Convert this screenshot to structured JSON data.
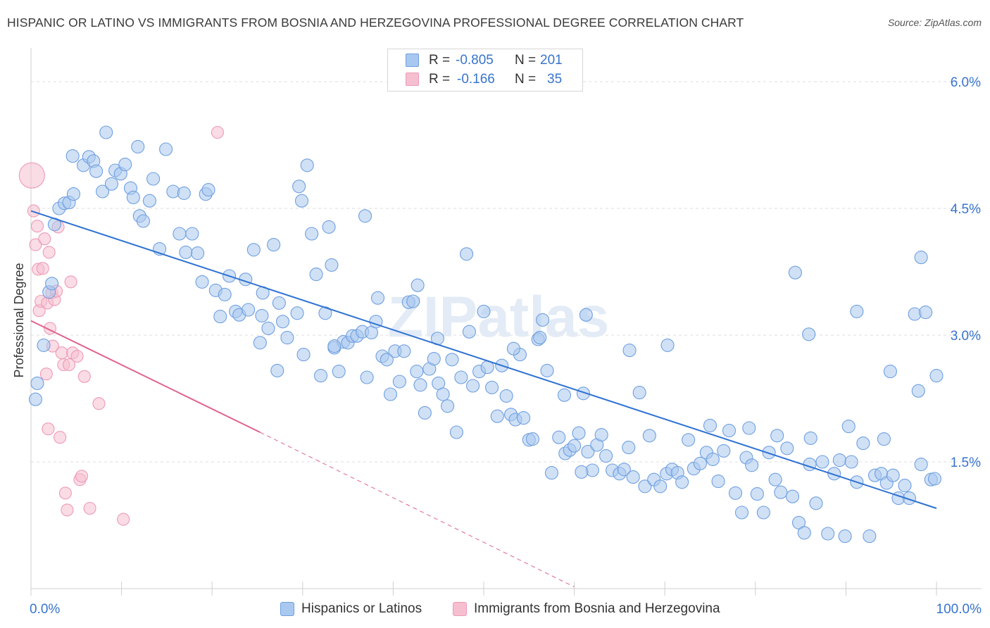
{
  "title": "HISPANIC OR LATINO VS IMMIGRANTS FROM BOSNIA AND HERZEGOVINA PROFESSIONAL DEGREE CORRELATION CHART",
  "source": "Source: ZipAtlas.com",
  "watermark": "ZIPatlas",
  "colors": {
    "blue_fill": "#a9c8ef",
    "blue_stroke": "#6f9fe0",
    "blue_line": "#2e72d2",
    "pink_fill": "#f6bfd0",
    "pink_stroke": "#ee9ab5",
    "pink_line": "#e0628d",
    "axis_text": "#3874cc",
    "grid": "#dcdcdc"
  },
  "legend_top": {
    "r_label": "R =",
    "n_label": "N =",
    "rows": [
      {
        "r": "-0.805",
        "n": "201"
      },
      {
        "r": "-0.166",
        "n": "35"
      }
    ]
  },
  "chart_data": {
    "type": "scatter",
    "title": "HISPANIC OR LATINO VS IMMIGRANTS FROM BOSNIA AND HERZEGOVINA PROFESSIONAL DEGREE CORRELATION CHART",
    "ylabel": "Professional Degree",
    "xlabel": "",
    "xlim": [
      0,
      100
    ],
    "ylim": [
      0,
      6.3
    ],
    "x_tick_labels": [
      "0.0%",
      "100.0%"
    ],
    "y_ticks": [
      1.5,
      3.0,
      4.5,
      6.0
    ],
    "y_tick_labels": [
      "1.5%",
      "3.0%",
      "4.5%",
      "6.0%"
    ],
    "grid": true,
    "legend_position": "bottom",
    "series": [
      {
        "name": "Hispanics or Latinos",
        "r": -0.805,
        "n": 201,
        "trend": {
          "x": [
            0,
            100
          ],
          "y": [
            4.47,
            0.95
          ]
        },
        "points": [
          [
            0.5,
            2.24
          ],
          [
            0.7,
            2.43
          ],
          [
            1.4,
            2.88
          ],
          [
            2.0,
            3.51
          ],
          [
            2.3,
            3.61
          ],
          [
            2.6,
            4.31
          ],
          [
            3.1,
            4.5
          ],
          [
            3.7,
            4.56
          ],
          [
            4.2,
            4.57
          ],
          [
            4.7,
            4.67
          ],
          [
            4.6,
            5.12
          ],
          [
            5.8,
            5.01
          ],
          [
            6.4,
            5.11
          ],
          [
            6.9,
            5.06
          ],
          [
            7.2,
            4.94
          ],
          [
            7.9,
            4.7
          ],
          [
            8.3,
            5.4
          ],
          [
            8.9,
            4.79
          ],
          [
            9.3,
            4.95
          ],
          [
            9.9,
            4.91
          ],
          [
            10.4,
            5.02
          ],
          [
            11.0,
            4.74
          ],
          [
            11.3,
            4.63
          ],
          [
            11.8,
            5.23
          ],
          [
            12.0,
            4.41
          ],
          [
            12.4,
            4.35
          ],
          [
            13.1,
            4.59
          ],
          [
            13.5,
            4.85
          ],
          [
            14.2,
            4.02
          ],
          [
            14.9,
            5.2
          ],
          [
            15.7,
            4.7
          ],
          [
            16.4,
            4.2
          ],
          [
            16.9,
            4.68
          ],
          [
            17.1,
            3.98
          ],
          [
            17.8,
            4.2
          ],
          [
            18.4,
            3.97
          ],
          [
            18.9,
            3.63
          ],
          [
            19.3,
            4.67
          ],
          [
            19.6,
            4.72
          ],
          [
            20.4,
            3.53
          ],
          [
            20.9,
            3.22
          ],
          [
            21.4,
            3.48
          ],
          [
            21.9,
            3.7
          ],
          [
            22.6,
            3.28
          ],
          [
            23.0,
            3.24
          ],
          [
            23.7,
            3.66
          ],
          [
            24.0,
            3.3
          ],
          [
            24.6,
            4.01
          ],
          [
            25.3,
            2.91
          ],
          [
            25.6,
            3.5
          ],
          [
            26.2,
            3.08
          ],
          [
            26.8,
            4.07
          ],
          [
            27.4,
            3.38
          ],
          [
            27.8,
            3.16
          ],
          [
            28.3,
            2.97
          ],
          [
            29.4,
            3.26
          ],
          [
            29.6,
            4.76
          ],
          [
            29.9,
            4.59
          ],
          [
            30.5,
            5.01
          ],
          [
            31.0,
            4.2
          ],
          [
            31.5,
            3.72
          ],
          [
            32.0,
            2.52
          ],
          [
            32.5,
            3.26
          ],
          [
            32.9,
            4.28
          ],
          [
            33.5,
            2.85
          ],
          [
            34.0,
            2.57
          ],
          [
            34.5,
            2.92
          ],
          [
            35.0,
            2.91
          ],
          [
            35.5,
            2.99
          ],
          [
            36.0,
            2.99
          ],
          [
            36.6,
            3.04
          ],
          [
            37.1,
            2.5
          ],
          [
            37.6,
            3.03
          ],
          [
            38.3,
            3.44
          ],
          [
            38.8,
            2.75
          ],
          [
            39.3,
            2.71
          ],
          [
            39.7,
            2.3
          ],
          [
            40.2,
            2.81
          ],
          [
            40.7,
            2.45
          ],
          [
            41.2,
            2.81
          ],
          [
            41.7,
            3.39
          ],
          [
            42.2,
            3.4
          ],
          [
            42.6,
            2.57
          ],
          [
            43.0,
            2.41
          ],
          [
            43.5,
            2.08
          ],
          [
            44.0,
            2.6
          ],
          [
            44.5,
            2.72
          ],
          [
            45.0,
            2.43
          ],
          [
            45.5,
            2.3
          ],
          [
            46.0,
            2.16
          ],
          [
            46.5,
            2.71
          ],
          [
            47.0,
            1.85
          ],
          [
            47.5,
            2.5
          ],
          [
            48.1,
            3.96
          ],
          [
            48.8,
            2.4
          ],
          [
            49.5,
            2.57
          ],
          [
            50.0,
            3.28
          ],
          [
            50.4,
            2.62
          ],
          [
            50.9,
            2.38
          ],
          [
            51.5,
            2.04
          ],
          [
            52.0,
            2.64
          ],
          [
            52.5,
            2.28
          ],
          [
            53.0,
            2.06
          ],
          [
            53.5,
            2.0
          ],
          [
            54.0,
            2.77
          ],
          [
            54.4,
            2.02
          ],
          [
            55.0,
            1.76
          ],
          [
            55.4,
            1.77
          ],
          [
            56.0,
            2.95
          ],
          [
            56.5,
            3.18
          ],
          [
            57.0,
            2.58
          ],
          [
            57.5,
            1.37
          ],
          [
            58.3,
            1.79
          ],
          [
            59.0,
            1.6
          ],
          [
            59.5,
            1.64
          ],
          [
            60.0,
            1.69
          ],
          [
            60.5,
            1.84
          ],
          [
            61.0,
            2.31
          ],
          [
            61.5,
            1.62
          ],
          [
            62.0,
            1.4
          ],
          [
            62.5,
            1.7
          ],
          [
            63.0,
            1.82
          ],
          [
            63.5,
            1.57
          ],
          [
            64.2,
            1.4
          ],
          [
            65.0,
            1.36
          ],
          [
            65.5,
            1.41
          ],
          [
            66.0,
            1.67
          ],
          [
            66.5,
            1.32
          ],
          [
            67.2,
            2.32
          ],
          [
            67.8,
            1.21
          ],
          [
            68.3,
            1.81
          ],
          [
            68.8,
            1.29
          ],
          [
            69.5,
            1.21
          ],
          [
            70.2,
            1.36
          ],
          [
            70.8,
            1.41
          ],
          [
            71.4,
            1.37
          ],
          [
            71.9,
            1.26
          ],
          [
            72.6,
            1.76
          ],
          [
            73.2,
            1.42
          ],
          [
            73.9,
            1.48
          ],
          [
            74.6,
            1.61
          ],
          [
            75.3,
            1.53
          ],
          [
            75.9,
            1.27
          ],
          [
            76.5,
            1.63
          ],
          [
            77.1,
            1.87
          ],
          [
            77.8,
            1.13
          ],
          [
            78.5,
            0.9
          ],
          [
            79.0,
            1.55
          ],
          [
            79.6,
            1.46
          ],
          [
            80.2,
            1.12
          ],
          [
            80.9,
            0.9
          ],
          [
            81.5,
            1.61
          ],
          [
            82.2,
            1.29
          ],
          [
            82.8,
            1.14
          ],
          [
            83.5,
            1.66
          ],
          [
            84.1,
            1.09
          ],
          [
            84.8,
            0.78
          ],
          [
            85.4,
            0.66
          ],
          [
            86.0,
            1.47
          ],
          [
            86.7,
            1.01
          ],
          [
            87.4,
            1.5
          ],
          [
            88.0,
            0.65
          ],
          [
            88.7,
            1.36
          ],
          [
            89.3,
            1.52
          ],
          [
            89.9,
            0.62
          ],
          [
            90.6,
            1.5
          ],
          [
            91.2,
            1.26
          ],
          [
            91.9,
            1.72
          ],
          [
            92.6,
            0.62
          ],
          [
            93.2,
            1.34
          ],
          [
            93.9,
            1.36
          ],
          [
            94.5,
            1.25
          ],
          [
            95.2,
            1.34
          ],
          [
            95.8,
            1.07
          ],
          [
            96.5,
            1.22
          ],
          [
            97.0,
            1.07
          ],
          [
            97.6,
            3.25
          ],
          [
            98.0,
            2.34
          ],
          [
            98.3,
            1.47
          ],
          [
            98.8,
            3.27
          ],
          [
            99.4,
            1.29
          ],
          [
            99.8,
            1.3
          ],
          [
            100.0,
            2.52
          ],
          [
            30.1,
            2.77
          ],
          [
            27.2,
            2.58
          ],
          [
            33.2,
            3.83
          ],
          [
            38.1,
            3.16
          ],
          [
            44.9,
            2.96
          ],
          [
            48.4,
            3.04
          ],
          [
            53.3,
            2.84
          ],
          [
            56.2,
            2.97
          ],
          [
            61.3,
            3.24
          ],
          [
            66.1,
            2.82
          ],
          [
            70.3,
            2.88
          ],
          [
            75.0,
            1.93
          ],
          [
            79.3,
            1.9
          ],
          [
            82.4,
            1.81
          ],
          [
            86.1,
            1.78
          ],
          [
            90.3,
            1.92
          ],
          [
            94.2,
            1.77
          ],
          [
            98.3,
            3.92
          ],
          [
            84.4,
            3.74
          ],
          [
            85.9,
            3.01
          ],
          [
            91.2,
            3.28
          ],
          [
            94.9,
            2.57
          ],
          [
            36.9,
            4.41
          ],
          [
            33.5,
            2.87
          ],
          [
            25.5,
            3.23
          ],
          [
            42.7,
            3.59
          ],
          [
            58.9,
            2.29
          ],
          [
            60.8,
            1.38
          ]
        ]
      },
      {
        "name": "Immigrants from Bosnia and Herzegovina",
        "r": -0.166,
        "n": 35,
        "trend": {
          "x": [
            0,
            25.3,
            60
          ],
          "y": [
            3.17,
            1.85,
            0.02
          ]
        },
        "points": [
          [
            0.1,
            4.89
          ],
          [
            0.3,
            4.47
          ],
          [
            0.5,
            4.07
          ],
          [
            0.7,
            4.29
          ],
          [
            0.8,
            3.78
          ],
          [
            0.9,
            3.29
          ],
          [
            1.1,
            3.4
          ],
          [
            1.3,
            3.79
          ],
          [
            1.5,
            4.14
          ],
          [
            1.7,
            2.54
          ],
          [
            1.8,
            3.38
          ],
          [
            2.0,
            3.98
          ],
          [
            2.1,
            3.08
          ],
          [
            2.3,
            3.5
          ],
          [
            2.4,
            2.87
          ],
          [
            2.6,
            3.42
          ],
          [
            2.8,
            3.52
          ],
          [
            3.0,
            4.28
          ],
          [
            3.2,
            1.79
          ],
          [
            3.4,
            2.79
          ],
          [
            3.6,
            2.65
          ],
          [
            3.8,
            1.13
          ],
          [
            4.0,
            0.93
          ],
          [
            4.2,
            2.65
          ],
          [
            4.4,
            3.63
          ],
          [
            4.6,
            2.79
          ],
          [
            5.1,
            2.75
          ],
          [
            5.4,
            1.29
          ],
          [
            5.6,
            1.33
          ],
          [
            5.9,
            2.51
          ],
          [
            6.5,
            0.95
          ],
          [
            7.5,
            2.19
          ],
          [
            10.2,
            0.82
          ],
          [
            20.6,
            5.4
          ],
          [
            1.9,
            1.89
          ]
        ]
      }
    ]
  },
  "legend_bottom": [
    {
      "label": "Hispanics or Latinos"
    },
    {
      "label": "Immigrants from Bosnia and Herzegovina"
    }
  ]
}
